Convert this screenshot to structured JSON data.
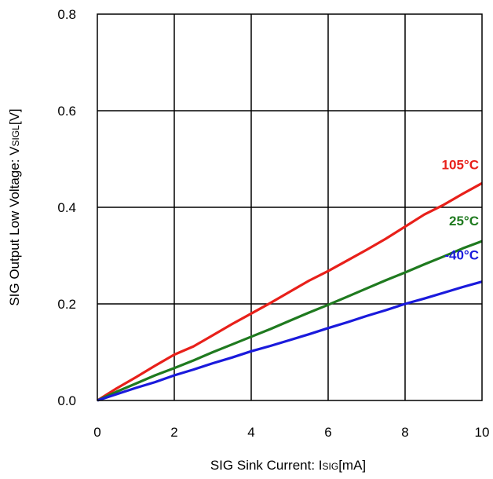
{
  "chart_data": {
    "type": "line",
    "title": "",
    "xlabel": {
      "main": "SIG Sink Current: I",
      "sub": "SIG",
      "unit": "[mA]"
    },
    "ylabel": {
      "main": "SIG Output Low Voltage: V",
      "sub": "SIGL",
      "unit": "[V]"
    },
    "xlim": [
      0,
      10
    ],
    "ylim": [
      0,
      0.8
    ],
    "xticks": [
      "0",
      "2",
      "4",
      "6",
      "8",
      "10"
    ],
    "yticks": [
      "0.0",
      "0.2",
      "0.4",
      "0.6",
      "0.8"
    ],
    "grid": true,
    "legend": "inline labels at right",
    "series": [
      {
        "name": "105°C",
        "color": "#e8201a",
        "x": [
          0,
          0.5,
          1,
          1.5,
          2,
          2.5,
          3,
          3.5,
          4,
          4.5,
          5,
          5.5,
          6,
          6.5,
          7,
          7.5,
          8,
          8.5,
          9,
          9.5,
          10
        ],
        "y": [
          0,
          0.025,
          0.048,
          0.072,
          0.095,
          0.112,
          0.135,
          0.158,
          0.18,
          0.202,
          0.225,
          0.248,
          0.268,
          0.29,
          0.312,
          0.335,
          0.36,
          0.385,
          0.405,
          0.428,
          0.45
        ]
      },
      {
        "name": "25°C",
        "color": "#1f7a1f",
        "x": [
          0,
          0.5,
          1,
          1.5,
          2,
          2.5,
          3,
          3.5,
          4,
          4.5,
          5,
          5.5,
          6,
          6.5,
          7,
          7.5,
          8,
          8.5,
          9,
          9.5,
          10
        ],
        "y": [
          0,
          0.018,
          0.035,
          0.052,
          0.067,
          0.083,
          0.1,
          0.116,
          0.132,
          0.148,
          0.165,
          0.182,
          0.198,
          0.215,
          0.232,
          0.249,
          0.265,
          0.282,
          0.298,
          0.315,
          0.33
        ]
      },
      {
        "name": "-40°C",
        "color": "#1a1adc",
        "x": [
          0,
          0.5,
          1,
          1.5,
          2,
          2.5,
          3,
          3.5,
          4,
          4.5,
          5,
          5.5,
          6,
          6.5,
          7,
          7.5,
          8,
          8.5,
          9,
          9.5,
          10
        ],
        "y": [
          0,
          0.013,
          0.026,
          0.038,
          0.052,
          0.064,
          0.077,
          0.089,
          0.102,
          0.113,
          0.125,
          0.137,
          0.15,
          0.162,
          0.175,
          0.187,
          0.2,
          0.211,
          0.223,
          0.235,
          0.246
        ]
      }
    ]
  }
}
